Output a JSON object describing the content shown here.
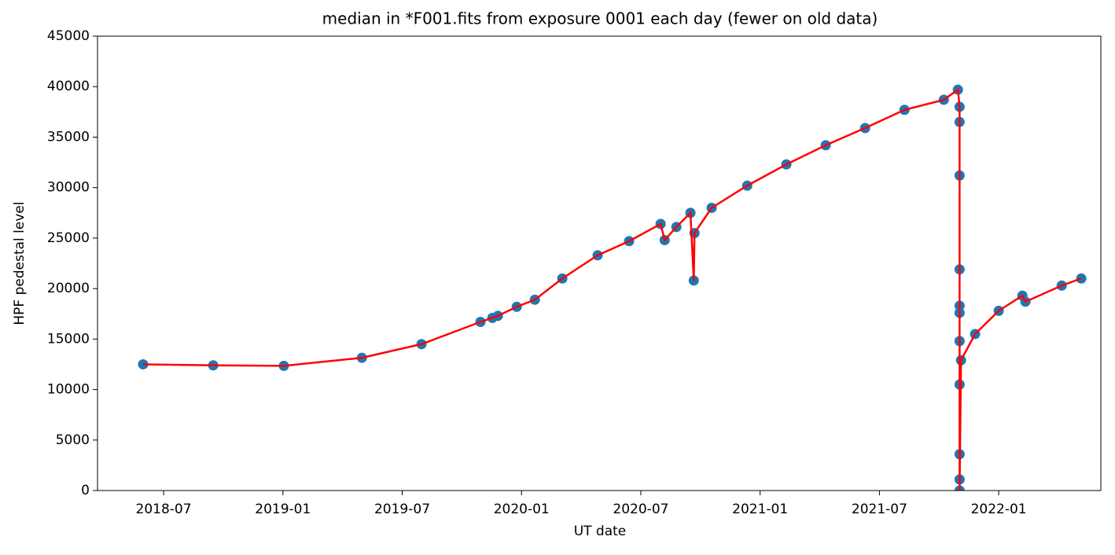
{
  "chart_data": {
    "type": "scatter",
    "title": "median in *F001.fits from exposure 0001 each day (fewer on old data)",
    "xlabel": "UT date",
    "ylabel": "HPF pedestal level",
    "x": [
      2018.414,
      2018.708,
      2019.004,
      2019.331,
      2019.581,
      2019.828,
      2019.878,
      2019.901,
      2019.98,
      2020.056,
      2020.171,
      2020.319,
      2020.451,
      2020.583,
      2020.6,
      2020.649,
      2020.708,
      2020.722,
      2020.725,
      2020.797,
      2020.946,
      2021.11,
      2021.275,
      2021.44,
      2021.605,
      2021.77,
      2021.829,
      2021.836,
      2021.836,
      2021.836,
      2021.836,
      2021.836,
      2021.836,
      2021.836,
      2021.836,
      2021.836,
      2021.836,
      2021.836,
      2021.842,
      2021.901,
      2022.0,
      2022.099,
      2022.112,
      2022.264,
      2022.346
    ],
    "values": [
      12500,
      12400,
      12350,
      13150,
      14500,
      16700,
      17100,
      17300,
      18200,
      18900,
      21000,
      23300,
      24700,
      26400,
      24800,
      26100,
      27500,
      20800,
      25500,
      28000,
      30200,
      32300,
      34200,
      35900,
      37700,
      38700,
      39700,
      38000,
      36500,
      31200,
      21900,
      18300,
      17600,
      14800,
      10500,
      3600,
      1100,
      0,
      12900,
      15500,
      17800,
      19300,
      18700,
      20300,
      21000
    ],
    "marker_color": "#1f77b4",
    "line_color": "#ff0000",
    "xlim": [
      2018.223,
      2022.428
    ],
    "xticks": [
      {
        "value": 2018.5,
        "label": "2018-07"
      },
      {
        "value": 2019.0,
        "label": "2019-01"
      },
      {
        "value": 2019.5,
        "label": "2019-07"
      },
      {
        "value": 2020.0,
        "label": "2020-01"
      },
      {
        "value": 2020.5,
        "label": "2020-07"
      },
      {
        "value": 2021.0,
        "label": "2021-01"
      },
      {
        "value": 2021.5,
        "label": "2021-07"
      },
      {
        "value": 2022.0,
        "label": "2022-01"
      }
    ],
    "ylim": [
      0,
      45000
    ],
    "yticks": [
      0,
      5000,
      10000,
      15000,
      20000,
      25000,
      30000,
      35000,
      40000,
      45000
    ]
  }
}
